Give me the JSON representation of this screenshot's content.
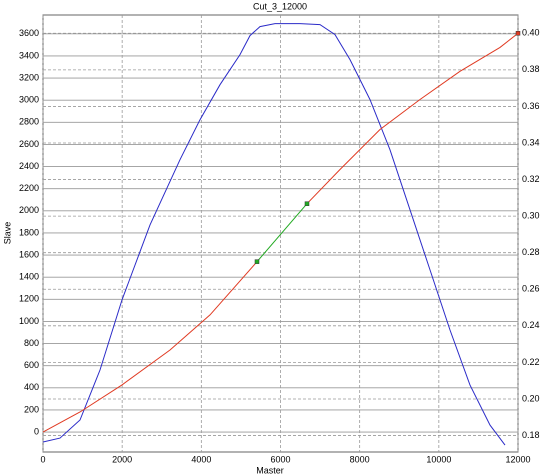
{
  "chart_data": {
    "type": "line",
    "title": "Cut_3_12000",
    "ylabel": "Slave",
    "xlabel": "Master",
    "xlim": [
      0,
      12000
    ],
    "xticks": [
      0,
      2000,
      4000,
      6000,
      8000,
      10000,
      12000
    ],
    "ylim": [
      -180,
      3770
    ],
    "yticks": [
      0,
      200,
      400,
      600,
      800,
      1000,
      1200,
      1400,
      1600,
      1800,
      2000,
      2200,
      2400,
      2600,
      2800,
      3000,
      3200,
      3400,
      3600
    ],
    "y2lim": [
      0.171,
      0.41
    ],
    "y2ticks": [
      0.18,
      {
        "value": 0.2,
        "label": "0.20"
      },
      0.22,
      0.24,
      0.26,
      0.28,
      {
        "value": 0.3,
        "label": "0.30"
      },
      0.32,
      0.34,
      0.36,
      0.38,
      {
        "value": 0.4,
        "label": "0.40"
      }
    ],
    "grid": true,
    "series": [
      {
        "color": "#2b2bc8",
        "x": [
          0,
          430,
          935,
          1440,
          1996,
          2703,
          3461,
          3966,
          4472,
          4977,
          5229,
          5482,
          5861,
          6493,
          6998,
          7377,
          7756,
          8261,
          8766,
          9272,
          9777,
          10282,
          10787,
          11293,
          11672
        ],
        "values": [
          -90,
          -54,
          109,
          561,
          1195,
          1873,
          2462,
          2824,
          3140,
          3412,
          3584,
          3665,
          3692,
          3692,
          3683,
          3593,
          3367,
          3005,
          2552,
          2009,
          1466,
          923,
          425,
          63,
          -118
        ]
      },
      {
        "color": "#e03a22",
        "axis": "y2",
        "end_marker": true,
        "x": [
          0,
          935,
          1996,
          3208,
          4219,
          5406,
          null,
          6669,
          7503,
          8514,
          9524,
          10535,
          11545,
          12000
        ],
        "values": [
          0.1819,
          0.1929,
          0.2077,
          0.2268,
          0.246,
          0.2751,
          null,
          0.3068,
          0.3255,
          0.3474,
          0.3638,
          0.3792,
          0.3923,
          0.4
        ]
      },
      {
        "color": "#22aa22",
        "axis": "y2",
        "markers": true,
        "x": [
          5406,
          6669
        ],
        "values": [
          0.2751,
          0.3068
        ]
      }
    ]
  }
}
